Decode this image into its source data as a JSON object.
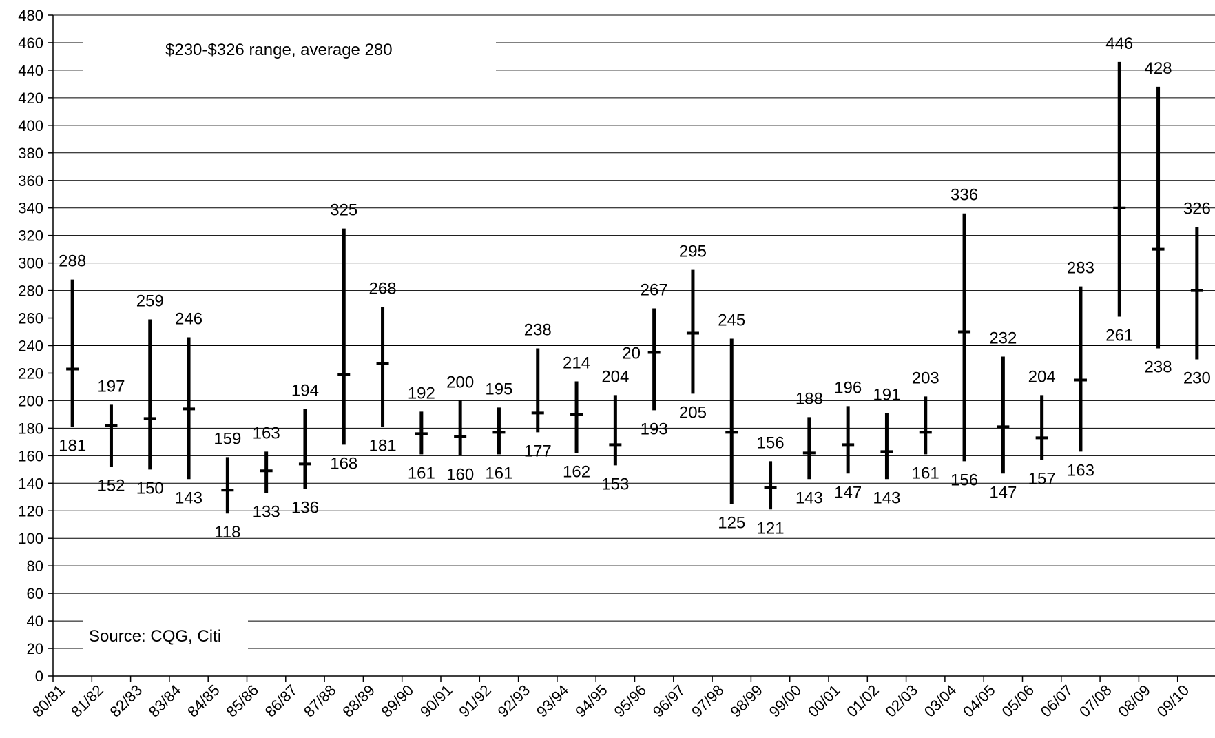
{
  "chart_data": {
    "type": "high-low-close",
    "title": "",
    "xlabel": "",
    "ylabel": "",
    "ylim": [
      0,
      480
    ],
    "ytick_step": 20,
    "grid": true,
    "legend": "none",
    "categories": [
      "80/81",
      "81/82",
      "82/83",
      "83/84",
      "84/85",
      "85/86",
      "86/87",
      "87/88",
      "88/89",
      "89/90",
      "90/91",
      "91/92",
      "92/93",
      "93/94",
      "94/95",
      "95/96",
      "96/97",
      "97/98",
      "98/99",
      "99/00",
      "00/01",
      "01/02",
      "02/03",
      "03/04",
      "04/05",
      "05/06",
      "06/07",
      "07/08",
      "08/09",
      "09/10"
    ],
    "series": [
      {
        "category": "80/81",
        "high": 288,
        "low": 181,
        "avg": 223
      },
      {
        "category": "81/82",
        "high": 197,
        "low": 152,
        "avg": 182
      },
      {
        "category": "82/83",
        "high": 259,
        "low": 150,
        "avg": 187
      },
      {
        "category": "83/84",
        "high": 246,
        "low": 143,
        "avg": 194
      },
      {
        "category": "84/85",
        "high": 159,
        "low": 118,
        "avg": 135
      },
      {
        "category": "85/86",
        "high": 163,
        "low": 133,
        "avg": 149
      },
      {
        "category": "86/87",
        "high": 194,
        "low": 136,
        "avg": 154
      },
      {
        "category": "87/88",
        "high": 325,
        "low": 168,
        "avg": 219
      },
      {
        "category": "88/89",
        "high": 268,
        "low": 181,
        "avg": 227
      },
      {
        "category": "89/90",
        "high": 192,
        "low": 161,
        "avg": 176
      },
      {
        "category": "90/91",
        "high": 200,
        "low": 160,
        "avg": 174
      },
      {
        "category": "91/92",
        "high": 195,
        "low": 161,
        "avg": 177
      },
      {
        "category": "92/93",
        "high": 238,
        "low": 177,
        "avg": 191
      },
      {
        "category": "93/94",
        "high": 214,
        "low": 162,
        "avg": 190
      },
      {
        "category": "94/95",
        "high": 204,
        "low": 153,
        "avg": 168
      },
      {
        "category": "95/96",
        "high": 267,
        "low": 193,
        "avg": 235,
        "high_label": "267",
        "extra_label": "20"
      },
      {
        "category": "96/97",
        "high": 295,
        "low": 205,
        "avg": 249
      },
      {
        "category": "97/98",
        "high": 245,
        "low": 125,
        "avg": 177
      },
      {
        "category": "98/99",
        "high": 156,
        "low": 121,
        "avg": 137
      },
      {
        "category": "99/00",
        "high": 188,
        "low": 143,
        "avg": 162
      },
      {
        "category": "00/01",
        "high": 196,
        "low": 147,
        "avg": 168
      },
      {
        "category": "01/02",
        "high": 191,
        "low": 143,
        "avg": 163
      },
      {
        "category": "02/03",
        "high": 203,
        "low": 161,
        "avg": 177
      },
      {
        "category": "03/04",
        "high": 336,
        "low": 156,
        "avg": 250
      },
      {
        "category": "04/05",
        "high": 232,
        "low": 147,
        "avg": 181
      },
      {
        "category": "05/06",
        "high": 204,
        "low": 157,
        "avg": 173
      },
      {
        "category": "06/07",
        "high": 283,
        "low": 163,
        "avg": 215
      },
      {
        "category": "07/08",
        "high": 446,
        "low": 261,
        "avg": 340
      },
      {
        "category": "08/09",
        "high": 428,
        "low": 238,
        "avg": 310
      },
      {
        "category": "09/10",
        "high": 326,
        "low": 230,
        "avg": 280
      }
    ],
    "annotations": {
      "range_note": "$230-$326 range, average 280",
      "source": "Source: CQG, Citi"
    }
  }
}
